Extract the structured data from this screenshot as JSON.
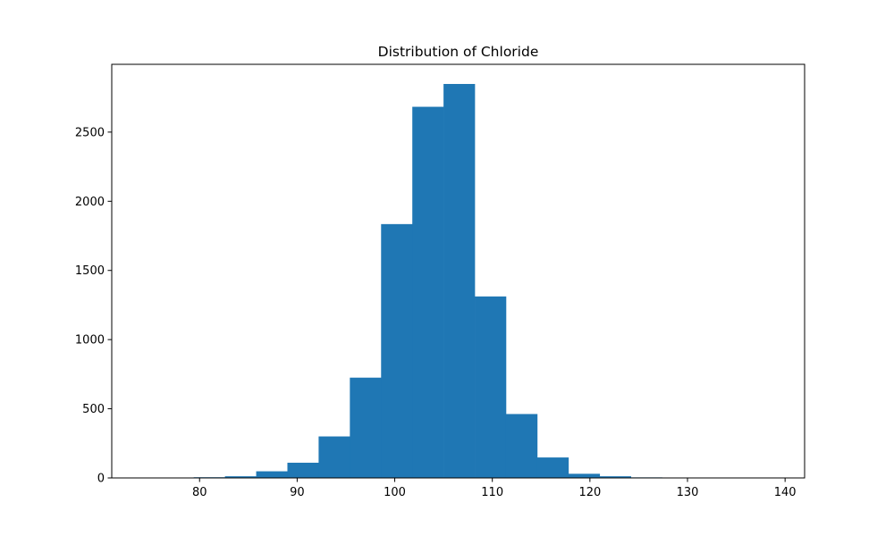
{
  "chart_data": {
    "type": "bar",
    "title": "Distribution of Chloride",
    "xlabel": "",
    "ylabel": "",
    "xlim": [
      71,
      142
    ],
    "ylim": [
      0,
      2990
    ],
    "bar_color": "#1f77b4",
    "grid": false,
    "legend": "none",
    "bin_edges": [
      73.0,
      76.2,
      79.4,
      82.6,
      85.8,
      89.0,
      92.2,
      95.4,
      98.6,
      101.8,
      105.0,
      108.2,
      111.4,
      114.6,
      117.8,
      121.0,
      124.2,
      127.4,
      130.6,
      133.8,
      137.0
    ],
    "values": [
      1,
      2,
      5,
      12,
      48,
      110,
      300,
      725,
      1835,
      2683,
      2848,
      1312,
      462,
      148,
      30,
      12,
      4,
      2,
      1,
      1
    ],
    "x_ticks": [
      80,
      90,
      100,
      110,
      120,
      130,
      140
    ],
    "y_ticks": [
      0,
      500,
      1000,
      1500,
      2000,
      2500
    ]
  }
}
